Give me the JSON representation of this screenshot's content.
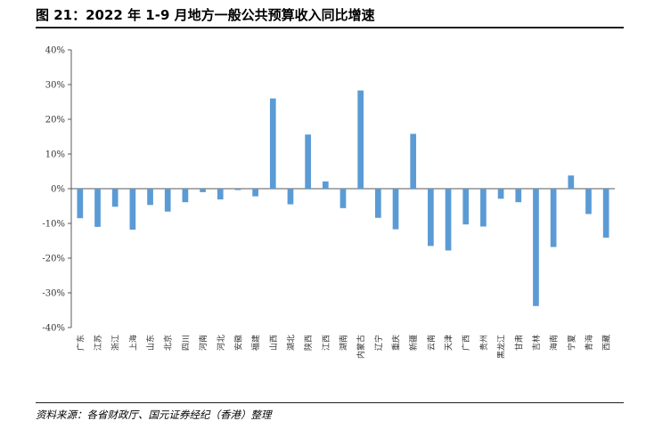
{
  "header": {
    "title": "图 21：2022 年 1-9 月地方一般公共预算收入同比增速"
  },
  "footer": {
    "source": "资料来源：各省财政厅、国元证券经纪（香港）整理"
  },
  "chart_data": {
    "type": "bar",
    "title": "",
    "xlabel": "",
    "ylabel": "",
    "ylim": [
      -40,
      40
    ],
    "yticks": [
      40,
      30,
      20,
      10,
      0,
      -10,
      -20,
      -30,
      -40
    ],
    "ytick_labels": [
      "40%",
      "30%",
      "20%",
      "10%",
      "0%",
      "-10%",
      "-20%",
      "-30%",
      "-40%"
    ],
    "grid": false,
    "legend": "none",
    "bar_color": "#5b9bd5",
    "categories": [
      "广东",
      "江苏",
      "浙江",
      "上海",
      "山东",
      "北京",
      "四川",
      "河南",
      "河北",
      "安徽",
      "福建",
      "山西",
      "湖北",
      "陕西",
      "江西",
      "湖南",
      "内蒙古",
      "辽宁",
      "重庆",
      "新疆",
      "云南",
      "天津",
      "广西",
      "贵州",
      "黑龙江",
      "甘肃",
      "吉林",
      "海南",
      "宁夏",
      "青海",
      "西藏"
    ],
    "values": [
      -8.5,
      -11.0,
      -5.2,
      -11.8,
      -4.7,
      -6.6,
      -3.9,
      -1.0,
      -3.1,
      -0.4,
      -2.2,
      26.0,
      -4.5,
      15.6,
      2.1,
      -5.6,
      28.3,
      -8.4,
      -11.7,
      15.8,
      -16.5,
      -17.8,
      -10.3,
      -10.9,
      -2.9,
      -3.9,
      -33.8,
      -16.8,
      3.8,
      -7.3,
      -14.1
    ]
  }
}
